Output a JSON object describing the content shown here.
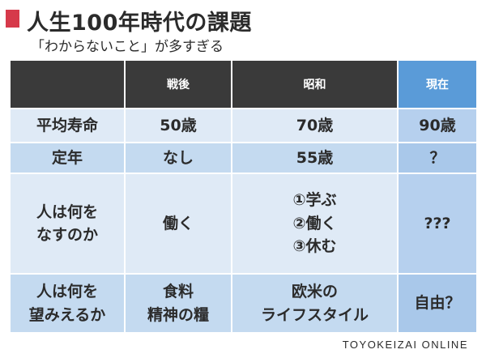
{
  "header": {
    "title": "人生100年時代の課題",
    "subtitle": "「わからないこと」が多すぎる"
  },
  "table": {
    "columns": [
      "",
      "戦後",
      "昭和",
      "現在"
    ],
    "rows": [
      {
        "label": [
          "平均寿命"
        ],
        "postwar": [
          "50歳"
        ],
        "showa": [
          "70歳"
        ],
        "current": [
          "90歳"
        ]
      },
      {
        "label": [
          "定年"
        ],
        "postwar": [
          "なし"
        ],
        "showa": [
          "55歳"
        ],
        "current": [
          "？"
        ]
      },
      {
        "label": [
          "人は何を",
          "なすのか"
        ],
        "postwar": [
          "働く"
        ],
        "showa": [
          "①学ぶ",
          "②働く",
          "③休む"
        ],
        "current": [
          "???"
        ]
      },
      {
        "label": [
          "人は何を",
          "望みえるか"
        ],
        "postwar": [
          "食料",
          "精神の糧"
        ],
        "showa": [
          "欧米の",
          "ライフスタイル"
        ],
        "current": [
          "自由？"
        ]
      }
    ]
  },
  "footer": {
    "credit": "TOYOKEIZAI ONLINE"
  },
  "colors": {
    "title_mark": "#d6394a",
    "header_dark": "#3a3a3a",
    "header_current": "#5a9bd8",
    "row_light": "#dfeaf6",
    "row_mid": "#c4daf0"
  }
}
